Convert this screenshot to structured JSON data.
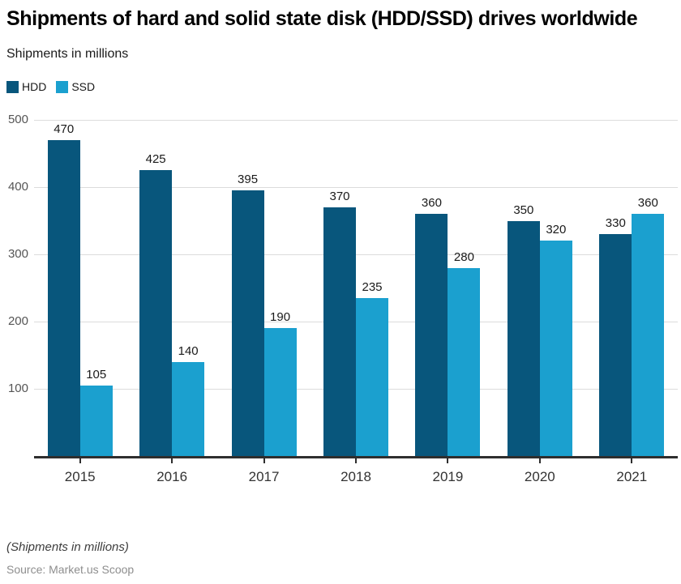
{
  "header": {
    "title": "Shipments of hard and solid state disk (HDD/SSD) drives worldwide",
    "subtitle": "Shipments in millions"
  },
  "chart_data": {
    "type": "bar",
    "title": "Shipments of hard and solid state disk (HDD/SSD) drives worldwide",
    "subtitle": "Shipments in millions",
    "categories": [
      "2015",
      "2016",
      "2017",
      "2018",
      "2019",
      "2020",
      "2021"
    ],
    "series": [
      {
        "name": "HDD",
        "color": "#08567C",
        "values": [
          470,
          425,
          395,
          370,
          360,
          350,
          330
        ]
      },
      {
        "name": "SSD",
        "color": "#1BA0CF",
        "values": [
          105,
          140,
          190,
          235,
          280,
          320,
          360
        ]
      }
    ],
    "ylim": [
      0,
      500
    ],
    "yticks": [
      100,
      200,
      300,
      400,
      500
    ],
    "grid": true,
    "legend_position": "top-left",
    "gridline_color": "#dcdcdc",
    "axis_color": "#2e2e2e"
  },
  "footer": {
    "note": "(Shipments in millions)",
    "source": "Source: Market.us Scoop"
  }
}
